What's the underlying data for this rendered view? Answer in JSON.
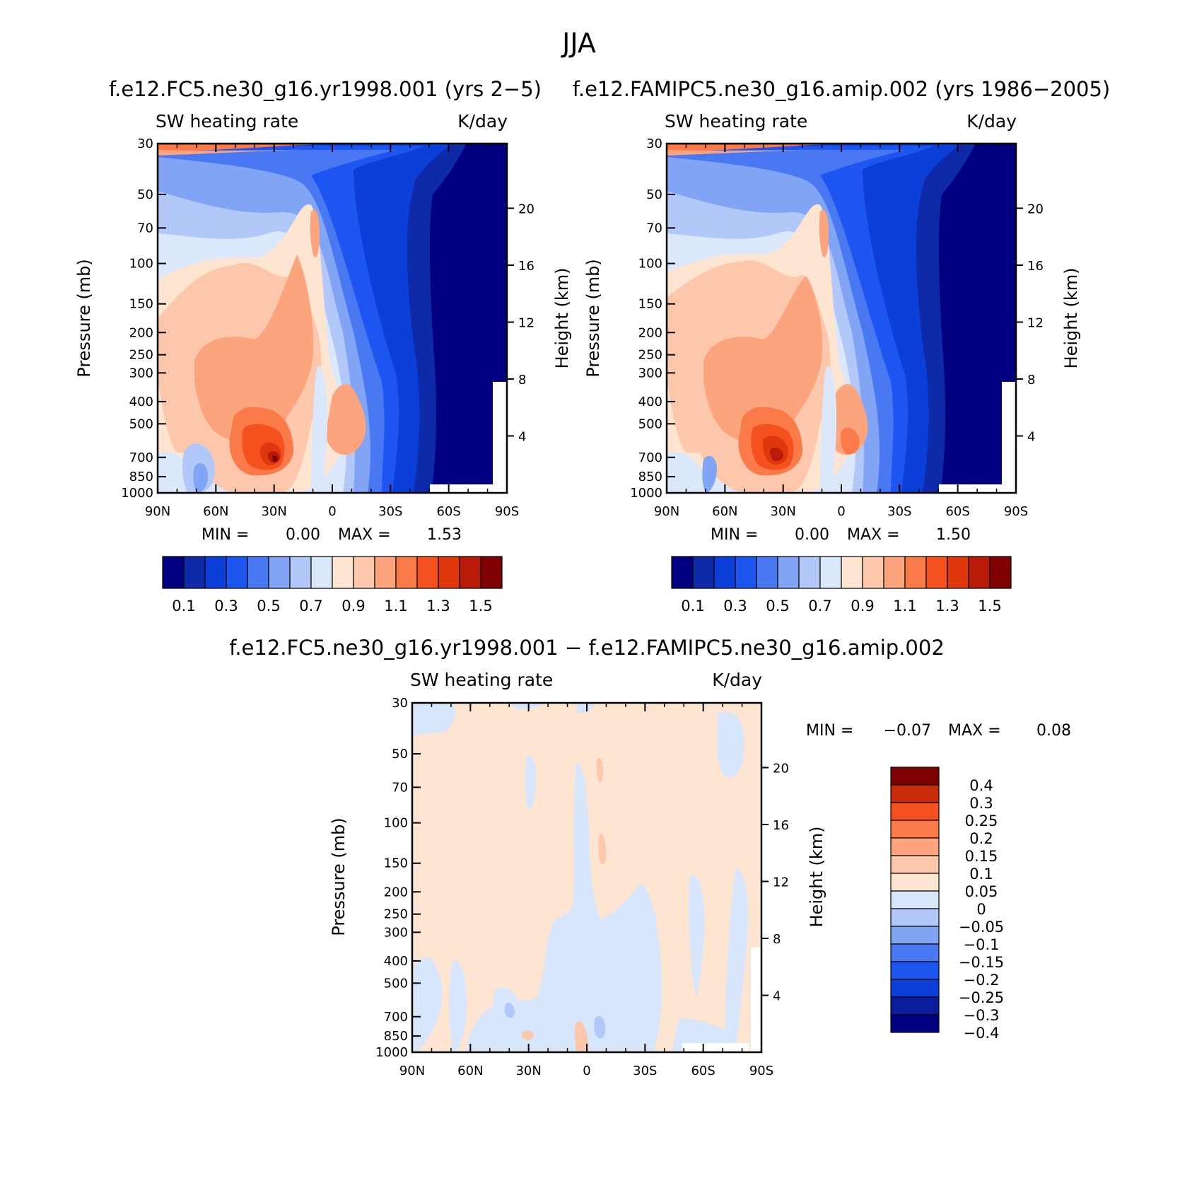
{
  "figure_title": "JJA",
  "colors": {
    "mean_palette": [
      "#000080",
      "#0f2aa8",
      "#0b3fd8",
      "#1d55f0",
      "#4a78f2",
      "#82a4f5",
      "#b2c8f8",
      "#dbe8fb",
      "#fde5d2",
      "#fcc7ab",
      "#fba47e",
      "#fb7a4a",
      "#f5511e",
      "#e0380c",
      "#b91b08",
      "#7f0000"
    ],
    "diff_palette": [
      "#000080",
      "#0b1d9a",
      "#0b3fd8",
      "#1d55f0",
      "#4a78f2",
      "#82a4f5",
      "#b2c8f8",
      "#d7e6fb",
      "#fde5d2",
      "#fcc7ab",
      "#fba47e",
      "#fb7a4a",
      "#f5511e",
      "#c92c0a",
      "#7f0000"
    ]
  },
  "chart_data": [
    {
      "type": "heatmap",
      "panel": "left",
      "title": "f.e12.FC5.ne30_g16.yr1998.001 (yrs 2−5)",
      "left_string": "SW heating rate",
      "right_string": "K/day",
      "xlabel": "",
      "ylabel": "Pressure (mb)",
      "ylabel_right": "Height (km)",
      "x_ticks": [
        "90N",
        "60N",
        "30N",
        "0",
        "30S",
        "60S",
        "90S"
      ],
      "y_ticks": [
        30,
        50,
        70,
        100,
        150,
        200,
        250,
        300,
        400,
        500,
        700,
        850,
        1000
      ],
      "y_ticks_right": [
        20,
        16,
        12,
        8,
        4
      ],
      "min_label": "MIN =",
      "min_value": "0.00",
      "max_label": "MAX =",
      "max_value": "1.53",
      "colorbar_labels": [
        "0.1",
        "0.3",
        "0.5",
        "0.7",
        "0.9",
        "1.1",
        "1.3",
        "1.5"
      ],
      "colorbar_levels": [
        0.1,
        0.2,
        0.3,
        0.4,
        0.5,
        0.6,
        0.7,
        0.8,
        0.9,
        1.0,
        1.1,
        1.2,
        1.3,
        1.4,
        1.5
      ]
    },
    {
      "type": "heatmap",
      "panel": "right",
      "title": "f.e12.FAMIPC5.ne30_g16.amip.002 (yrs 1986−2005)",
      "left_string": "SW heating rate",
      "right_string": "K/day",
      "xlabel": "",
      "ylabel": "Pressure (mb)",
      "ylabel_right": "Height (km)",
      "x_ticks": [
        "90N",
        "60N",
        "30N",
        "0",
        "30S",
        "60S",
        "90S"
      ],
      "y_ticks": [
        30,
        50,
        70,
        100,
        150,
        200,
        250,
        300,
        400,
        500,
        700,
        850,
        1000
      ],
      "y_ticks_right": [
        20,
        16,
        12,
        8,
        4
      ],
      "min_label": "MIN =",
      "min_value": "0.00",
      "max_label": "MAX =",
      "max_value": "1.50",
      "colorbar_labels": [
        "0.1",
        "0.3",
        "0.5",
        "0.7",
        "0.9",
        "1.1",
        "1.3",
        "1.5"
      ],
      "colorbar_levels": [
        0.1,
        0.2,
        0.3,
        0.4,
        0.5,
        0.6,
        0.7,
        0.8,
        0.9,
        1.0,
        1.1,
        1.2,
        1.3,
        1.4,
        1.5
      ]
    },
    {
      "type": "heatmap",
      "panel": "difference",
      "title": "f.e12.FC5.ne30_g16.yr1998.001 − f.e12.FAMIPC5.ne30_g16.amip.002",
      "left_string": "SW heating rate",
      "right_string": "K/day",
      "xlabel": "",
      "ylabel": "Pressure (mb)",
      "ylabel_right": "Height (km)",
      "x_ticks": [
        "90N",
        "60N",
        "30N",
        "0",
        "30S",
        "60S",
        "90S"
      ],
      "y_ticks": [
        30,
        50,
        70,
        100,
        150,
        200,
        250,
        300,
        400,
        500,
        700,
        850,
        1000
      ],
      "y_ticks_right": [
        20,
        16,
        12,
        8,
        4
      ],
      "min_label": "MIN =",
      "min_value": "−0.07",
      "max_label": "MAX =",
      "max_value": "0.08",
      "colorbar_labels": [
        "0.4",
        "0.3",
        "0.25",
        "0.2",
        "0.15",
        "0.1",
        "0.05",
        "0",
        "−0.05",
        "−0.1",
        "−0.15",
        "−0.2",
        "−0.25",
        "−0.3",
        "−0.4"
      ],
      "colorbar_levels": [
        0.4,
        0.3,
        0.25,
        0.2,
        0.15,
        0.1,
        0.05,
        0,
        -0.05,
        -0.1,
        -0.15,
        -0.2,
        -0.25,
        -0.3,
        -0.4
      ]
    }
  ]
}
